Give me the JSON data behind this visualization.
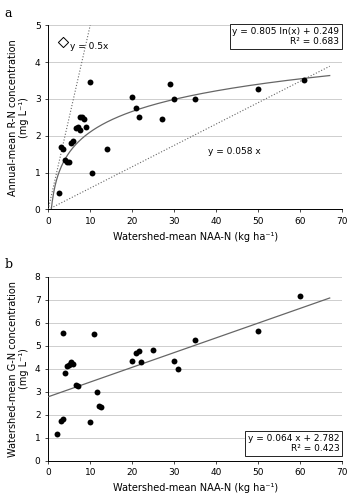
{
  "panel_a": {
    "title": "a",
    "scatter_filled": [
      [
        2.5,
        0.45
      ],
      [
        3.0,
        1.7
      ],
      [
        3.5,
        1.65
      ],
      [
        4.0,
        1.35
      ],
      [
        4.5,
        1.3
      ],
      [
        5.0,
        1.3
      ],
      [
        5.5,
        1.8
      ],
      [
        6.0,
        1.85
      ],
      [
        6.5,
        2.2
      ],
      [
        7.0,
        2.25
      ],
      [
        7.5,
        2.5
      ],
      [
        7.5,
        2.15
      ],
      [
        8.0,
        2.5
      ],
      [
        8.5,
        2.45
      ],
      [
        9.0,
        2.25
      ],
      [
        10.0,
        3.45
      ],
      [
        10.5,
        1.0
      ],
      [
        14.0,
        1.65
      ],
      [
        20.0,
        3.05
      ],
      [
        21.0,
        2.75
      ],
      [
        21.5,
        2.5
      ],
      [
        27.0,
        2.45
      ],
      [
        29.0,
        3.4
      ],
      [
        30.0,
        3.0
      ],
      [
        35.0,
        3.0
      ],
      [
        50.0,
        3.27
      ],
      [
        61.0,
        3.5
      ]
    ],
    "scatter_open": [
      [
        3.5,
        4.55
      ]
    ],
    "xlabel": "Watershed-mean NAA-N (kg ha⁻¹)",
    "ylabel": "Annual-mean R-N concentration\n(mg L⁻¹)",
    "xlim": [
      0,
      70
    ],
    "ylim": [
      0,
      5
    ],
    "xticks": [
      0,
      10,
      20,
      30,
      40,
      50,
      60,
      70
    ],
    "yticks": [
      0,
      1,
      2,
      3,
      4,
      5
    ],
    "log_eq": "y = 0.805 ln(x) + 0.249",
    "log_r2": "R² = 0.683",
    "label_05x": "y = 0.5x",
    "label_058x": "y = 0.058 x",
    "log_color": "#666666",
    "dashed_color": "#666666"
  },
  "panel_b": {
    "title": "b",
    "scatter_filled": [
      [
        2.0,
        1.15
      ],
      [
        3.0,
        1.75
      ],
      [
        3.5,
        1.8
      ],
      [
        3.5,
        5.55
      ],
      [
        4.0,
        3.8
      ],
      [
        4.5,
        4.1
      ],
      [
        5.0,
        4.15
      ],
      [
        5.5,
        4.25
      ],
      [
        5.5,
        4.3
      ],
      [
        6.0,
        4.2
      ],
      [
        6.5,
        3.3
      ],
      [
        7.0,
        3.25
      ],
      [
        10.0,
        1.7
      ],
      [
        11.0,
        5.5
      ],
      [
        11.5,
        3.0
      ],
      [
        12.0,
        2.4
      ],
      [
        12.5,
        2.35
      ],
      [
        20.0,
        4.35
      ],
      [
        21.0,
        4.7
      ],
      [
        21.5,
        4.75
      ],
      [
        22.0,
        4.3
      ],
      [
        25.0,
        4.8
      ],
      [
        30.0,
        4.35
      ],
      [
        31.0,
        4.0
      ],
      [
        35.0,
        5.25
      ],
      [
        50.0,
        5.62
      ],
      [
        60.0,
        7.15
      ]
    ],
    "xlabel": "Watershed-mean NAA-N (kg ha⁻¹)",
    "ylabel": "Watershed-mean G-N concentration\n(mg L⁻¹)",
    "xlim": [
      0,
      70
    ],
    "ylim": [
      0,
      8
    ],
    "xticks": [
      0,
      10,
      20,
      30,
      40,
      50,
      60,
      70
    ],
    "yticks": [
      0,
      1,
      2,
      3,
      4,
      5,
      6,
      7,
      8
    ],
    "linear_eq": "y = 0.064 x + 2.782",
    "linear_r2": "R² = 0.423",
    "line_color": "#666666"
  },
  "fig_background": "#ffffff",
  "marker_color": "#000000",
  "marker_size": 18,
  "fontsize_label": 7.0,
  "fontsize_tick": 6.5,
  "fontsize_annot": 6.5,
  "fontsize_title": 9
}
